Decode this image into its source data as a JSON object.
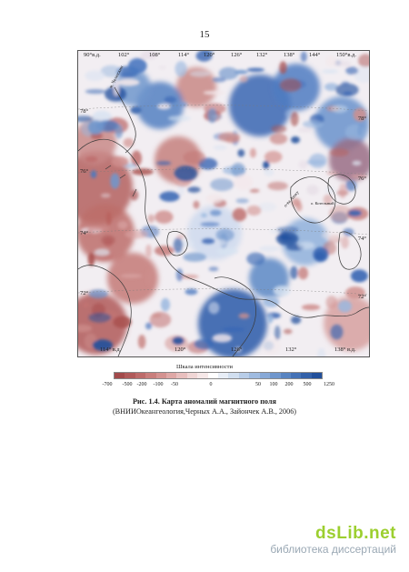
{
  "page": {
    "number": "15"
  },
  "map": {
    "top_labels": [
      "90°в.д.",
      "102°",
      "108°",
      "114°",
      "120°",
      "126°",
      "132°",
      "138°",
      "144°",
      "150°в.д."
    ],
    "bottom_labels": [
      "114° в.д.",
      "120°",
      "126°",
      "132°",
      "138° в.д."
    ],
    "left_labels": [
      "78°",
      "76°",
      "74°",
      "72°"
    ],
    "right_labels": [
      "78°",
      "76°",
      "74°",
      "72°"
    ],
    "place_labels": [
      "м. Челюскин",
      "о-ва Анжу",
      "о. Котельный"
    ],
    "colors": {
      "negative": "#b8605e",
      "neutral": "#f4f0f2",
      "positive": "#2f5fb0",
      "coast": "#3a3a3a"
    }
  },
  "scale": {
    "title": "Шкала интенсивности",
    "labels": [
      "-700",
      "-500",
      "-200",
      "-100",
      "-50",
      "0",
      "50",
      "100",
      "200",
      "500",
      "1250"
    ],
    "colors": [
      "#a34a4b",
      "#b05a5a",
      "#bd6b6a",
      "#c97e7c",
      "#d49290",
      "#dfa8a6",
      "#e8bfbe",
      "#f0d6d5",
      "#f6e8e8",
      "#ffffff",
      "#e8eef7",
      "#d1dff0",
      "#b8cde8",
      "#9fbbe0",
      "#87a9d7",
      "#6f96cc",
      "#5884c1",
      "#4472b6",
      "#3361a9",
      "#22509b"
    ]
  },
  "caption": {
    "title": "Рис. 1.4.  Карта аномалий магнитного поля",
    "source": "(ВНИИОкеангеология,Черных А.А., Зайончек А.В., 2006)"
  },
  "watermark": {
    "logo": "dsLib.net",
    "text": "библиотека диссертаций"
  }
}
